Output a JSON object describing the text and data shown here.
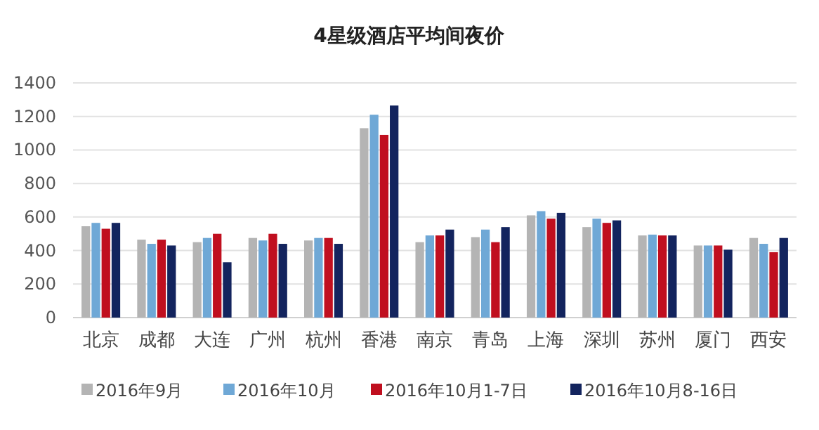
{
  "chart_data": {
    "type": "bar",
    "title": "4星级酒店平均间夜价",
    "categories": [
      "北京",
      "成都",
      "大连",
      "广州",
      "杭州",
      "香港",
      "南京",
      "青岛",
      "上海",
      "深圳",
      "苏州",
      "厦门",
      "西安"
    ],
    "series": [
      {
        "name": "2016年9月",
        "color": "#b4b4b4",
        "values": [
          545,
          465,
          450,
          475,
          460,
          1130,
          450,
          480,
          610,
          540,
          490,
          430,
          475
        ]
      },
      {
        "name": "2016年10月",
        "color": "#6fa8d6",
        "values": [
          565,
          440,
          475,
          460,
          475,
          1210,
          490,
          525,
          635,
          590,
          495,
          430,
          440
        ]
      },
      {
        "name": "2016年10月1-7日",
        "color": "#c00f1f",
        "values": [
          530,
          465,
          500,
          500,
          475,
          1090,
          490,
          450,
          590,
          565,
          490,
          430,
          390
        ]
      },
      {
        "name": "2016年10月8-16日",
        "color": "#13245e",
        "values": [
          565,
          430,
          330,
          440,
          440,
          1265,
          525,
          540,
          625,
          580,
          490,
          405,
          475
        ]
      }
    ],
    "ylim": [
      0,
      1400
    ],
    "yticks": [
      0,
      200,
      400,
      600,
      800,
      1000,
      1200,
      1400
    ],
    "grid": "y",
    "legend": "bottom"
  }
}
